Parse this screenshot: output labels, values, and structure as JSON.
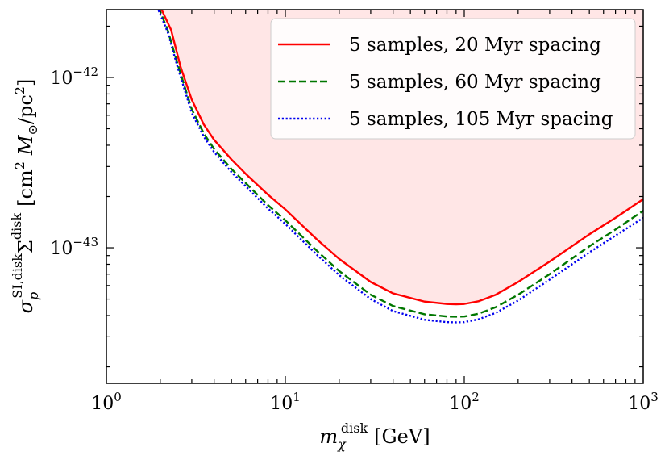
{
  "chart_data": {
    "type": "line",
    "xscale": "log",
    "yscale": "log",
    "xlim": [
      1,
      1000
    ],
    "ylim": [
      1.6e-44,
      2.5e-42
    ],
    "x_ticks": [
      {
        "value": 1,
        "base": "10",
        "exp": "0"
      },
      {
        "value": 10,
        "base": "10",
        "exp": "1"
      },
      {
        "value": 100,
        "base": "10",
        "exp": "2"
      },
      {
        "value": 1000,
        "base": "10",
        "exp": "3"
      }
    ],
    "y_ticks": [
      {
        "value": 1e-43,
        "base": "10",
        "exp": "−43"
      },
      {
        "value": 1e-42,
        "base": "10",
        "exp": "−42"
      }
    ],
    "xlabel": {
      "main": "m",
      "sub": "χ",
      "sup": "disk",
      "unit": "[GeV]"
    },
    "ylabel": {
      "main": "σ",
      "sub": "p",
      "sup": "SI,disk",
      "sym": "Σ",
      "sym_sup": "disk",
      "unit_open": "[cm",
      "unit_sup": "2",
      "unit_mid": "M",
      "unit_sub": "⊙",
      "unit_tail": "/pc",
      "unit_sup2": "2",
      "unit_close": "]"
    },
    "legend_position": "top-right",
    "grid": false,
    "excluded_region_fill": "#ffe6e6",
    "series": [
      {
        "name": "5 samples, 20 Myr spacing",
        "color": "#ff0000",
        "style": "solid",
        "x": [
          2.0,
          2.3,
          2.6,
          3.0,
          3.5,
          4.0,
          5.0,
          6.0,
          8.0,
          10,
          15,
          20,
          30,
          40,
          60,
          80,
          90,
          100,
          120,
          150,
          200,
          300,
          500,
          700,
          1000
        ],
        "y": [
          2.6e-42,
          1.9e-42,
          1.15e-42,
          7.4e-43,
          5.3e-43,
          4.3e-43,
          3.3e-43,
          2.72e-43,
          2.05e-43,
          1.68e-43,
          1.12e-43,
          8.6e-44,
          6.3e-44,
          5.4e-44,
          4.83e-44,
          4.68e-44,
          4.66e-44,
          4.68e-44,
          4.85e-44,
          5.3e-44,
          6.3e-44,
          8.3e-44,
          1.2e-43,
          1.5e-43,
          1.93e-43
        ]
      },
      {
        "name": "5 samples, 60 Myr spacing",
        "color": "#007700",
        "style": "dashed",
        "x": [
          1.95,
          2.2,
          2.5,
          3.0,
          3.5,
          4.0,
          5.0,
          6.0,
          8.0,
          10,
          15,
          20,
          30,
          40,
          60,
          80,
          90,
          100,
          120,
          150,
          200,
          300,
          500,
          700,
          1000
        ],
        "y": [
          2.6e-42,
          1.9e-42,
          1.2e-42,
          6.5e-43,
          4.7e-43,
          3.8e-43,
          2.9e-43,
          2.4e-43,
          1.78e-43,
          1.45e-43,
          9.6e-44,
          7.3e-44,
          5.3e-44,
          4.55e-44,
          4.07e-44,
          3.95e-44,
          3.94e-44,
          3.95e-44,
          4.1e-44,
          4.48e-44,
          5.3e-44,
          7e-44,
          1.02e-43,
          1.28e-43,
          1.65e-43
        ]
      },
      {
        "name": "5 samples, 105 Myr spacing",
        "color": "#0000ee",
        "style": "dotted",
        "x": [
          1.92,
          2.2,
          2.5,
          3.0,
          3.5,
          4.0,
          5.0,
          6.0,
          8.0,
          10,
          15,
          20,
          30,
          40,
          60,
          80,
          90,
          100,
          120,
          150,
          200,
          300,
          500,
          700,
          1000
        ],
        "y": [
          2.6e-42,
          1.85e-42,
          1.15e-42,
          6.2e-43,
          4.5e-43,
          3.65e-43,
          2.78e-43,
          2.3e-43,
          1.7e-43,
          1.38e-43,
          9.1e-44,
          6.9e-44,
          5e-44,
          4.25e-44,
          3.78e-44,
          3.66e-44,
          3.65e-44,
          3.66e-44,
          3.8e-44,
          4.15e-44,
          4.9e-44,
          6.5e-44,
          9.4e-44,
          1.18e-43,
          1.5e-43
        ]
      }
    ]
  }
}
